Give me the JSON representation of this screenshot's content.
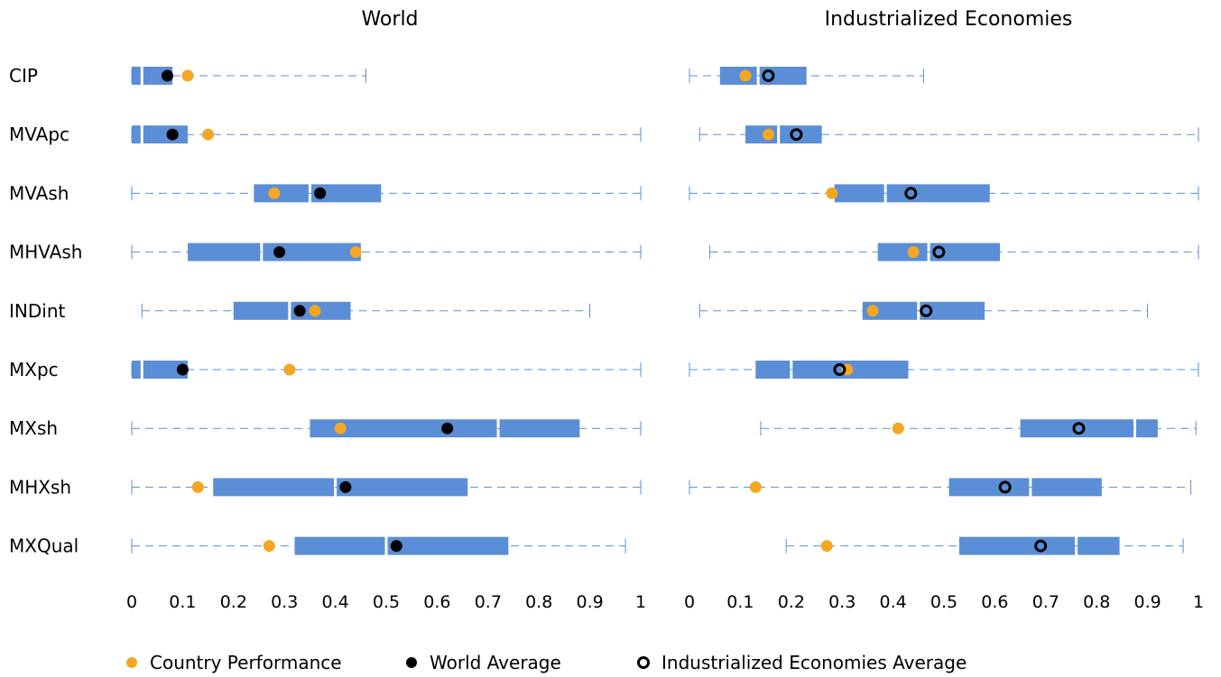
{
  "chart_data": {
    "type": "boxplot",
    "categories": [
      "CIP",
      "MVApc",
      "MVAsh",
      "MHVAsh",
      "INDint",
      "MXpc",
      "MXsh",
      "MHXsh",
      "MXQual"
    ],
    "xlim": [
      0,
      1
    ],
    "x_ticks": [
      "0",
      "0.1",
      "0.2",
      "0.3",
      "0.4",
      "0.5",
      "0.6",
      "0.7",
      "0.8",
      "0.9",
      "1"
    ],
    "grid": false,
    "legend_position": "bottom",
    "colors": {
      "box": "#5a8ed6",
      "whisker": "#5b8fd1",
      "country": "#f5a623",
      "average": "#000000"
    },
    "legend": [
      {
        "label": "Country Performance",
        "marker": "orange-dot"
      },
      {
        "label": "World Average",
        "marker": "black-dot"
      },
      {
        "label": "Industrialized Economies Average",
        "marker": "black-ring"
      }
    ],
    "panels": [
      {
        "title": "World",
        "average_marker": "filled",
        "rows": [
          {
            "min": 0.0,
            "q1": 0.0,
            "median": 0.02,
            "q3": 0.08,
            "max": 0.46,
            "country": 0.11,
            "average": 0.07
          },
          {
            "min": 0.0,
            "q1": 0.0,
            "median": 0.02,
            "q3": 0.11,
            "max": 1.0,
            "country": 0.15,
            "average": 0.08
          },
          {
            "min": 0.0,
            "q1": 0.24,
            "median": 0.35,
            "q3": 0.49,
            "max": 1.0,
            "country": 0.28,
            "average": 0.37
          },
          {
            "min": 0.0,
            "q1": 0.11,
            "median": 0.255,
            "q3": 0.45,
            "max": 1.0,
            "country": 0.44,
            "average": 0.29
          },
          {
            "min": 0.02,
            "q1": 0.2,
            "median": 0.31,
            "q3": 0.43,
            "max": 0.9,
            "country": 0.36,
            "average": 0.33
          },
          {
            "min": 0.0,
            "q1": 0.0,
            "median": 0.02,
            "q3": 0.11,
            "max": 1.0,
            "country": 0.31,
            "average": 0.1
          },
          {
            "min": 0.0,
            "q1": 0.35,
            "median": 0.72,
            "q3": 0.88,
            "max": 1.0,
            "country": 0.41,
            "average": 0.62
          },
          {
            "min": 0.0,
            "q1": 0.16,
            "median": 0.4,
            "q3": 0.66,
            "max": 1.0,
            "country": 0.13,
            "average": 0.42
          },
          {
            "min": 0.0,
            "q1": 0.32,
            "median": 0.5,
            "q3": 0.74,
            "max": 0.97,
            "country": 0.27,
            "average": 0.52
          }
        ]
      },
      {
        "title": "Industrialized Economies",
        "average_marker": "ring",
        "rows": [
          {
            "min": 0.0,
            "q1": 0.06,
            "median": 0.135,
            "q3": 0.23,
            "max": 0.46,
            "country": 0.11,
            "average": 0.155
          },
          {
            "min": 0.02,
            "q1": 0.11,
            "median": 0.175,
            "q3": 0.26,
            "max": 1.0,
            "country": 0.155,
            "average": 0.21
          },
          {
            "min": 0.0,
            "q1": 0.285,
            "median": 0.385,
            "q3": 0.59,
            "max": 1.0,
            "country": 0.28,
            "average": 0.435
          },
          {
            "min": 0.04,
            "q1": 0.37,
            "median": 0.47,
            "q3": 0.61,
            "max": 1.0,
            "country": 0.44,
            "average": 0.49
          },
          {
            "min": 0.02,
            "q1": 0.34,
            "median": 0.45,
            "q3": 0.58,
            "max": 0.9,
            "country": 0.36,
            "average": 0.465
          },
          {
            "min": 0.0,
            "q1": 0.13,
            "median": 0.2,
            "q3": 0.43,
            "max": 1.0,
            "country": 0.31,
            "average": 0.295
          },
          {
            "min": 0.14,
            "q1": 0.65,
            "median": 0.875,
            "q3": 0.92,
            "max": 0.995,
            "country": 0.41,
            "average": 0.765
          },
          {
            "min": 0.0,
            "q1": 0.51,
            "median": 0.67,
            "q3": 0.81,
            "max": 0.985,
            "country": 0.13,
            "average": 0.62
          },
          {
            "min": 0.19,
            "q1": 0.53,
            "median": 0.76,
            "q3": 0.845,
            "max": 0.97,
            "country": 0.27,
            "average": 0.69
          }
        ]
      }
    ]
  }
}
